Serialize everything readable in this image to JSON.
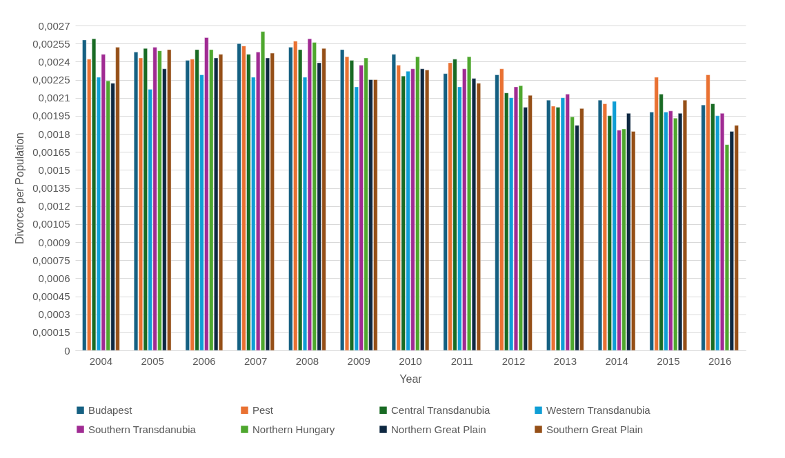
{
  "chart_data": {
    "type": "bar",
    "xlabel": "Year",
    "ylabel": "Divorce per Population",
    "categories": [
      "2004",
      "2005",
      "2006",
      "2007",
      "2008",
      "2009",
      "2010",
      "2011",
      "2012",
      "2013",
      "2014",
      "2015",
      "2016"
    ],
    "series": [
      {
        "name": "Budapest",
        "color": "#156082",
        "values": [
          0.00258,
          0.00248,
          0.00241,
          0.00255,
          0.00252,
          0.0025,
          0.00246,
          0.0023,
          0.00229,
          0.00208,
          0.00208,
          0.00198,
          0.00204
        ]
      },
      {
        "name": "Pest",
        "color": "#e97132",
        "values": [
          0.00242,
          0.00243,
          0.00242,
          0.00253,
          0.00257,
          0.00244,
          0.00237,
          0.00239,
          0.00234,
          0.00203,
          0.00205,
          0.00227,
          0.00229
        ]
      },
      {
        "name": "Central Transdanubia",
        "color": "#196b24",
        "values": [
          0.00259,
          0.00251,
          0.0025,
          0.00246,
          0.0025,
          0.00241,
          0.00228,
          0.00242,
          0.00214,
          0.00202,
          0.00195,
          0.00213,
          0.00205
        ]
      },
      {
        "name": "Western Transdanubia",
        "color": "#0f9ed5",
        "values": [
          0.00227,
          0.00217,
          0.00229,
          0.00227,
          0.00227,
          0.00219,
          0.00232,
          0.00219,
          0.0021,
          0.0021,
          0.00207,
          0.00198,
          0.00195
        ]
      },
      {
        "name": "Southern Transdanubia",
        "color": "#a02b93",
        "values": [
          0.00246,
          0.00252,
          0.0026,
          0.00248,
          0.00259,
          0.00237,
          0.00234,
          0.00234,
          0.00219,
          0.00213,
          0.00183,
          0.00199,
          0.00197
        ]
      },
      {
        "name": "Northern Hungary",
        "color": "#4ea72e",
        "values": [
          0.00224,
          0.00249,
          0.0025,
          0.00265,
          0.00256,
          0.00243,
          0.00244,
          0.00244,
          0.0022,
          0.00194,
          0.00184,
          0.00193,
          0.00171
        ]
      },
      {
        "name": "Northern Great Plain",
        "color": "#0e2841",
        "values": [
          0.00222,
          0.00234,
          0.00243,
          0.00243,
          0.00239,
          0.00225,
          0.00234,
          0.00226,
          0.00202,
          0.00187,
          0.00197,
          0.00197,
          0.00182
        ]
      },
      {
        "name": "Southern Great Plain",
        "color": "#954f17",
        "values": [
          0.00252,
          0.0025,
          0.00246,
          0.00247,
          0.00251,
          0.00225,
          0.00233,
          0.00222,
          0.00212,
          0.00201,
          0.00182,
          0.00208,
          0.00187
        ]
      }
    ],
    "ylim": [
      0,
      0.0027
    ],
    "yticks": [
      0,
      {
        "value": 0.00015,
        "label": "0,00015"
      },
      {
        "value": 0.0003,
        "label": "0,0003"
      },
      {
        "value": 0.00045,
        "label": "0,00045"
      },
      {
        "value": 0.0006,
        "label": "0,0006"
      },
      {
        "value": 0.00075,
        "label": "0,00075"
      },
      {
        "value": 0.0009,
        "label": "0,0009"
      },
      {
        "value": 0.00105,
        "label": "0,00105"
      },
      {
        "value": 0.0012,
        "label": "0,0012"
      },
      {
        "value": 0.00135,
        "label": "0,00135"
      },
      {
        "value": 0.0015,
        "label": "0,0015"
      },
      {
        "value": 0.00165,
        "label": "0,00165"
      },
      {
        "value": 0.0018,
        "label": "0,0018"
      },
      {
        "value": 0.00195,
        "label": "0,00195"
      },
      {
        "value": 0.0021,
        "label": "0,0021"
      },
      {
        "value": 0.00225,
        "label": "0,00225"
      },
      {
        "value": 0.0024,
        "label": "0,0024"
      },
      {
        "value": 0.00255,
        "label": "0,00255"
      },
      {
        "value": 0.0027,
        "label": "0,0027"
      }
    ],
    "grid": "y",
    "legend": "bottom"
  }
}
